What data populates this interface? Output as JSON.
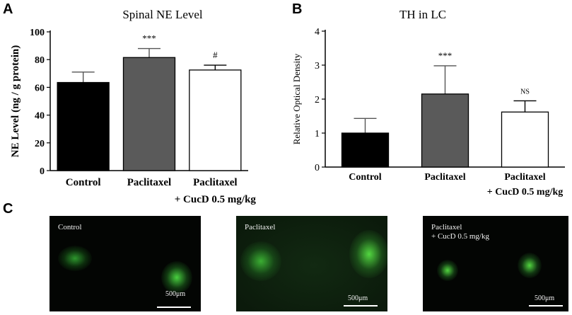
{
  "panels": {
    "a": "A",
    "b": "B",
    "c": "C"
  },
  "chart_data": [
    {
      "type": "bar",
      "title": "Spinal NE Level",
      "ylabel": "NE Level (ng / g protein)",
      "xlabel": "",
      "categories": [
        "Control",
        "Paclitaxel",
        "Paclitaxel\n+ CucD 0.5 mg/kg"
      ],
      "values": [
        63.5,
        81.5,
        72.5
      ],
      "errors": [
        7.5,
        6.5,
        3.5
      ],
      "annotations": [
        "",
        "***",
        "#"
      ],
      "bar_colors": [
        "#000000",
        "#5a5a5a",
        "#ffffff"
      ],
      "ylim": [
        0,
        100
      ],
      "yticks": [
        0,
        20,
        40,
        60,
        80,
        100
      ],
      "grid": false
    },
    {
      "type": "bar",
      "title": "TH in LC",
      "ylabel": "Relative Optical Density",
      "xlabel": "",
      "categories": [
        "Control",
        "Paclitaxel",
        "Paclitaxel\n+ CucD 0.5 mg/kg"
      ],
      "values": [
        1.0,
        2.15,
        1.62
      ],
      "errors": [
        0.43,
        0.83,
        0.33
      ],
      "annotations": [
        "",
        "***",
        "NS"
      ],
      "bar_colors": [
        "#000000",
        "#5a5a5a",
        "#ffffff"
      ],
      "ylim": [
        0,
        4
      ],
      "yticks": [
        0,
        1,
        2,
        3,
        4
      ],
      "grid": false
    }
  ],
  "micrographs": [
    {
      "label_line1": "Control",
      "label_line2": "",
      "scale": "500μm"
    },
    {
      "label_line1": "Paclitaxel",
      "label_line2": "",
      "scale": "500μm"
    },
    {
      "label_line1": "Paclitaxel",
      "label_line2": "+ CucD 0.5 mg/kg",
      "scale": "500μm"
    }
  ]
}
